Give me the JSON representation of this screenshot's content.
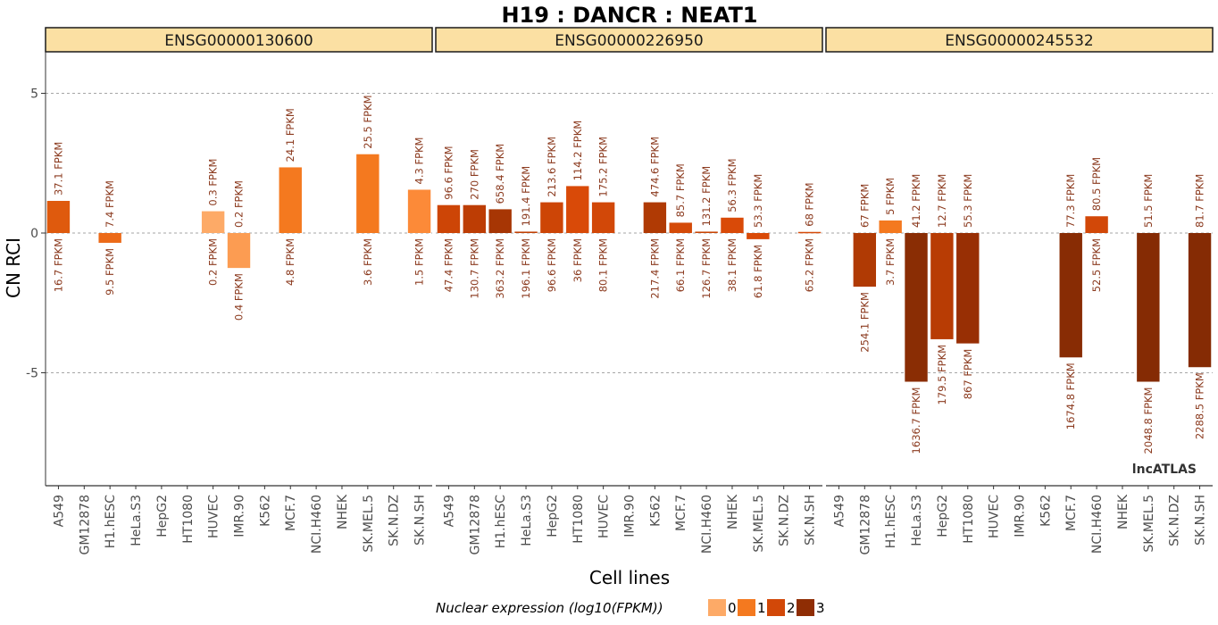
{
  "chart_data": {
    "type": "bar",
    "title": "H19 : DANCR : NEAT1",
    "xlabel": "Cell lines",
    "ylabel": "CN RCI",
    "ylim": [
      -9,
      6.5
    ],
    "yticks": [
      -5,
      0,
      5
    ],
    "ytick_labels": [
      "-5",
      "0",
      "5"
    ],
    "grid": "horizontal dashed",
    "watermark": "lncATLAS",
    "categories": [
      "A549",
      "GM12878",
      "H1.hESC",
      "HeLa.S3",
      "HepG2",
      "HT1080",
      "HUVEC",
      "IMR.90",
      "K562",
      "MCF.7",
      "NCI.H460",
      "NHEK",
      "SK.MEL.5",
      "SK.N.DZ",
      "SK.N.SH"
    ],
    "legend": {
      "title": "Nuclear expression (log10(FPKM))",
      "placement": "bottom",
      "items": [
        {
          "label": "0",
          "color": "#fdaa67"
        },
        {
          "label": "1",
          "color": "#f4791f"
        },
        {
          "label": "2",
          "color": "#d24808"
        },
        {
          "label": "3",
          "color": "#8f2d04"
        }
      ]
    },
    "panels": [
      {
        "name": "ENSG00000130600",
        "bars": [
          {
            "cell": "A549",
            "value": 1.15,
            "color": "#df5a0d",
            "above_label": "37.1 FPKM",
            "below_label": "16.7 FPKM"
          },
          {
            "cell": "H1.hESC",
            "value": -0.35,
            "color": "#ec6a18",
            "above_label": "7.4 FPKM",
            "below_label": "9.5 FPKM"
          },
          {
            "cell": "HUVEC",
            "value": 0.78,
            "color": "#fdaa67",
            "above_label": "0.3 FPKM",
            "below_label": "0.2 FPKM"
          },
          {
            "cell": "IMR.90",
            "value": -1.25,
            "color": "#fc9c52",
            "above_label": "0.2 FPKM",
            "below_label": "0.4 FPKM"
          },
          {
            "cell": "MCF.7",
            "value": 2.35,
            "color": "#f4791f",
            "above_label": "24.1 FPKM",
            "below_label": "4.8 FPKM"
          },
          {
            "cell": "SK.MEL.5",
            "value": 2.82,
            "color": "#f4791f",
            "above_label": "25.5 FPKM",
            "below_label": "3.6 FPKM"
          },
          {
            "cell": "SK.N.SH",
            "value": 1.55,
            "color": "#fc8a38",
            "above_label": "4.3 FPKM",
            "below_label": "1.5 FPKM"
          }
        ]
      },
      {
        "name": "ENSG00000226950",
        "bars": [
          {
            "cell": "A549",
            "value": 1.0,
            "color": "#cd4506",
            "above_label": "96.6 FPKM",
            "below_label": "47.4 FPKM"
          },
          {
            "cell": "GM12878",
            "value": 1.0,
            "color": "#bd3d04",
            "above_label": "270 FPKM",
            "below_label": "130.7 FPKM"
          },
          {
            "cell": "H1.hESC",
            "value": 0.85,
            "color": "#a73604",
            "above_label": "658.4 FPKM",
            "below_label": "363.2 FPKM"
          },
          {
            "cell": "HeLa.S3",
            "value": 0.05,
            "color": "#c04004",
            "above_label": "191.4 FPKM",
            "below_label": "196.1 FPKM"
          },
          {
            "cell": "HepG2",
            "value": 1.1,
            "color": "#cd4506",
            "above_label": "213.6 FPKM",
            "below_label": "96.6 FPKM"
          },
          {
            "cell": "HT1080",
            "value": 1.68,
            "color": "#d94a08",
            "above_label": "114.2 FPKM",
            "below_label": "36 FPKM"
          },
          {
            "cell": "HUVEC",
            "value": 1.1,
            "color": "#d24808",
            "above_label": "175.2 FPKM",
            "below_label": "80.1 FPKM"
          },
          {
            "cell": "K562",
            "value": 1.1,
            "color": "#b03a04",
            "above_label": "474.6 FPKM",
            "below_label": "217.4 FPKM"
          },
          {
            "cell": "MCF.7",
            "value": 0.37,
            "color": "#d44a08",
            "above_label": "85.7 FPKM",
            "below_label": "66.1 FPKM"
          },
          {
            "cell": "NCI.H460",
            "value": 0.05,
            "color": "#c84405",
            "above_label": "131.2 FPKM",
            "below_label": "126.7 FPKM"
          },
          {
            "cell": "NHEK",
            "value": 0.55,
            "color": "#d94a08",
            "above_label": "56.3 FPKM",
            "below_label": "38.1 FPKM"
          },
          {
            "cell": "SK.MEL.5",
            "value": -0.22,
            "color": "#d94a08",
            "above_label": "53.3 FPKM",
            "below_label": "61.8 FPKM"
          },
          {
            "cell": "SK.N.SH",
            "value": 0.04,
            "color": "#d64908",
            "above_label": "68 FPKM",
            "below_label": "65.2 FPKM"
          }
        ]
      },
      {
        "name": "ENSG00000245532",
        "bars": [
          {
            "cell": "GM12878",
            "value": -1.92,
            "color": "#b03a04",
            "above_label": "67 FPKM",
            "below_label": "254.1 FPKM"
          },
          {
            "cell": "H1.hESC",
            "value": 0.45,
            "color": "#f4791f",
            "above_label": "5 FPKM",
            "below_label": "3.7 FPKM"
          },
          {
            "cell": "HeLa.S3",
            "value": -5.32,
            "color": "#8a2d04",
            "above_label": "41.2 FPKM",
            "below_label": "1636.7 FPKM"
          },
          {
            "cell": "HepG2",
            "value": -3.8,
            "color": "#b83c04",
            "above_label": "12.7 FPKM",
            "below_label": "179.5 FPKM"
          },
          {
            "cell": "HT1080",
            "value": -3.95,
            "color": "#982f04",
            "above_label": "55.3 FPKM",
            "below_label": "867 FPKM"
          },
          {
            "cell": "MCF.7",
            "value": -4.45,
            "color": "#882c04",
            "above_label": "77.3 FPKM",
            "below_label": "1674.8 FPKM"
          },
          {
            "cell": "NCI.H460",
            "value": 0.6,
            "color": "#d24808",
            "above_label": "80.5 FPKM",
            "below_label": "52.5 FPKM"
          },
          {
            "cell": "SK.MEL.5",
            "value": -5.32,
            "color": "#852b04",
            "above_label": "51.5 FPKM",
            "below_label": "2048.8 FPKM"
          },
          {
            "cell": "SK.N.SH",
            "value": -4.8,
            "color": "#852b04",
            "above_label": "81.7 FPKM",
            "below_label": "2288.5 FPKM"
          }
        ]
      }
    ]
  }
}
